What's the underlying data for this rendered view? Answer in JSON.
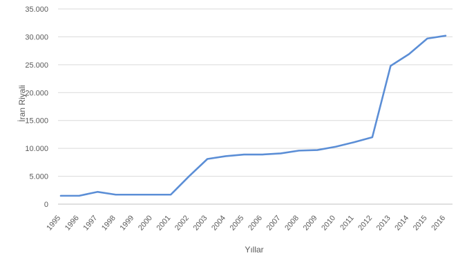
{
  "chart_data": {
    "type": "line",
    "title": "",
    "xlabel": "Yıllar",
    "ylabel": "İran Riyali",
    "x": [
      "1995",
      "1996",
      "1997",
      "1998",
      "1999",
      "2000",
      "2001",
      "2002",
      "2003",
      "2004",
      "2005",
      "2006",
      "2007",
      "2008",
      "2009",
      "2010",
      "2011",
      "2012",
      "2013",
      "2014",
      "2015",
      "2016"
    ],
    "series": [
      {
        "values": [
          1500,
          1500,
          2200,
          1700,
          1700,
          1700,
          1700,
          5000,
          8100,
          8600,
          8900,
          8900,
          9100,
          9600,
          9700,
          10300,
          11100,
          12000,
          24800,
          26900,
          29700,
          30200
        ]
      }
    ],
    "ylim": [
      0,
      35000
    ],
    "yticks": [
      "0",
      "5.000",
      "10.000",
      "15.000",
      "20.000",
      "25.000",
      "30.000",
      "35.000"
    ],
    "ytick_values": [
      0,
      5000,
      10000,
      15000,
      20000,
      25000,
      30000,
      35000
    ],
    "grid": true,
    "legend": "none",
    "line_color": "#5b8ed6",
    "grid_color": "#d9d9d9",
    "axis_color": "#bfbfbf"
  }
}
